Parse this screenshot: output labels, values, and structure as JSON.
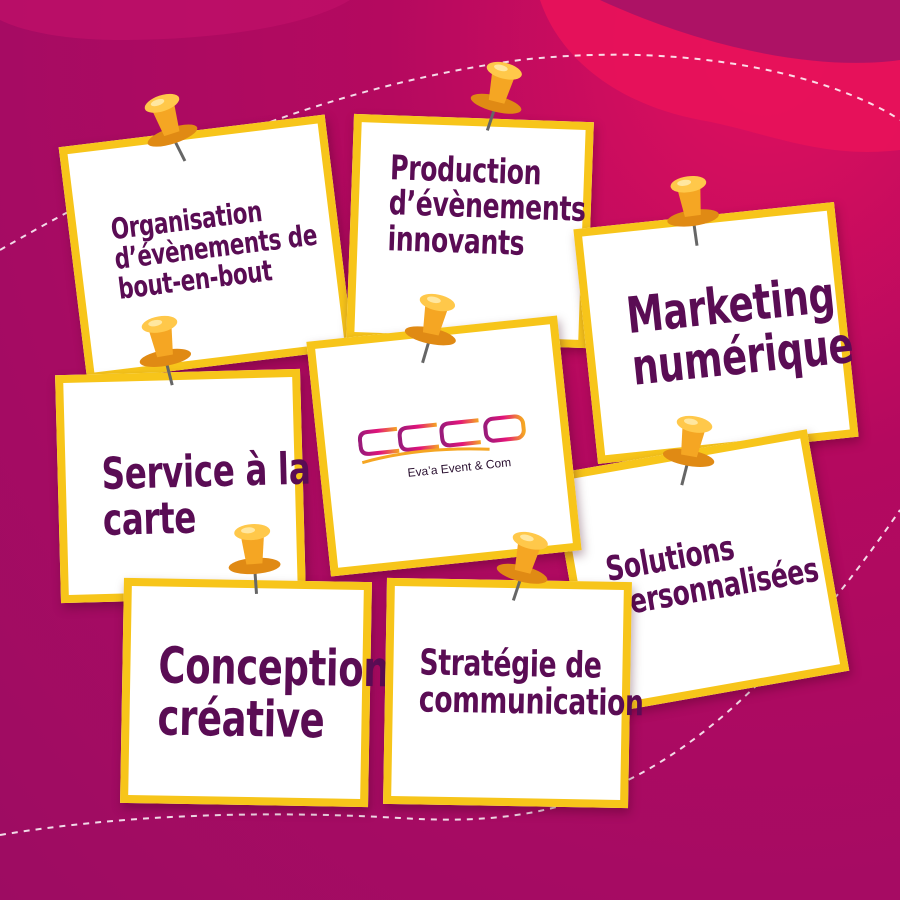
{
  "colors": {
    "background": "#b10a68",
    "note_border": "#f7c51a",
    "text": "#5a0c54",
    "pin": "#f5a623"
  },
  "notes": [
    {
      "id": "organisation",
      "lines": [
        "Organisation",
        "d’évènements de",
        "bout-en-bout"
      ]
    },
    {
      "id": "production",
      "lines": [
        "Production",
        "d’évènements",
        "innovants"
      ]
    },
    {
      "id": "marketing",
      "lines": [
        "Marketing",
        "numérique"
      ]
    },
    {
      "id": "service",
      "lines": [
        "Service à la",
        "carte"
      ]
    },
    {
      "id": "solutions",
      "lines": [
        "Solutions",
        "personnalisées"
      ]
    },
    {
      "id": "conception",
      "lines": [
        "Conception",
        "créative"
      ]
    },
    {
      "id": "strategie",
      "lines": [
        "Stratégie de",
        "communication"
      ]
    }
  ],
  "logo": {
    "wordmark": "EECO",
    "tagline": "Eva’a Event & Com"
  }
}
